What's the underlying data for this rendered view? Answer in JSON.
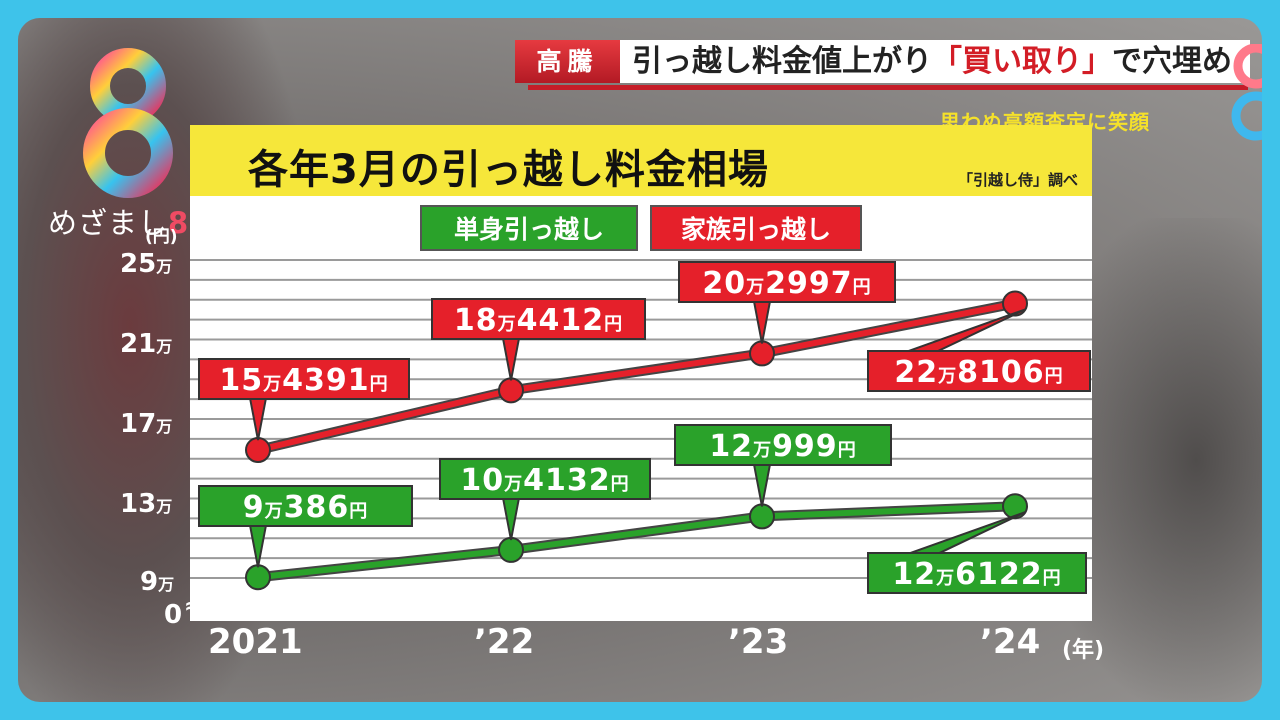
{
  "header": {
    "tag": "高騰",
    "title_pre": "引っ越し料金値上がり",
    "title_highlight": "「買い取り」",
    "title_post": "で穴埋め",
    "subtitle": "思わぬ高額査定に笑顔"
  },
  "logo": {
    "text": "めざまし",
    "num": "8"
  },
  "chart_data": {
    "type": "line",
    "title": "各年3月の引っ越し料金相場",
    "source": "「引越し侍」調べ",
    "x": [
      "2021",
      "’22",
      "’23",
      "’24"
    ],
    "x_unit": "(年)",
    "y_unit": "(円)",
    "y_ticks": [
      "25",
      "21",
      "17",
      "13",
      "9",
      "0"
    ],
    "y_tick_suffix": "万",
    "ylim": [
      90000,
      250000
    ],
    "y_break": true,
    "grid": true,
    "legend_placement": "top-center",
    "series": [
      {
        "name": "単身引っ越し",
        "color": "#2aa22a",
        "values": [
          90386,
          104132,
          120999,
          126122
        ],
        "labels": [
          {
            "man": "9",
            "rest": "386",
            "yen": "円"
          },
          {
            "man": "10",
            "rest": "4132",
            "yen": "円"
          },
          {
            "man": "12",
            "rest": "999",
            "yen": "円"
          },
          {
            "man": "12",
            "rest": "6122",
            "yen": "円"
          }
        ]
      },
      {
        "name": "家族引っ越し",
        "color": "#e5202a",
        "values": [
          154391,
          184412,
          202997,
          228106
        ],
        "labels": [
          {
            "man": "15",
            "rest": "4391",
            "yen": "円"
          },
          {
            "man": "18",
            "rest": "4412",
            "yen": "円"
          },
          {
            "man": "20",
            "rest": "2997",
            "yen": "円"
          },
          {
            "man": "22",
            "rest": "8106",
            "yen": "円"
          }
        ]
      }
    ]
  }
}
